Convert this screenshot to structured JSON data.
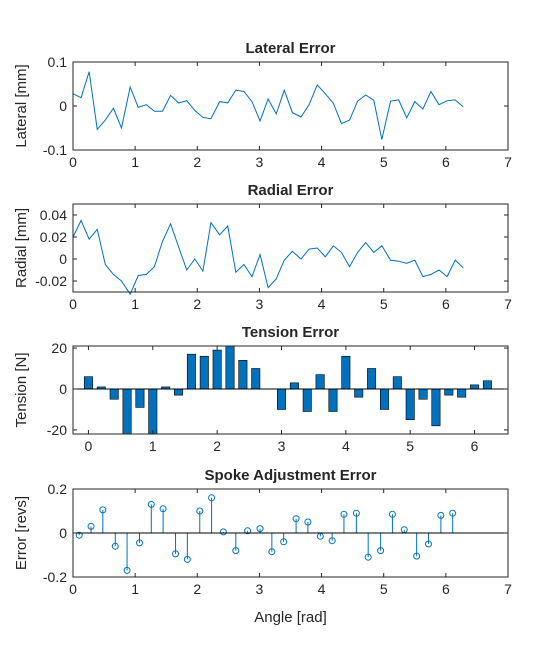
{
  "figure": {
    "background": "#ffffff",
    "line_color": "#0072bd",
    "bar_color": "#0072bd"
  },
  "chart_data": [
    {
      "type": "line",
      "title": "Lateral Error",
      "xlabel": "",
      "ylabel": "Lateral [mm]",
      "xlim": [
        0,
        7
      ],
      "ylim": [
        -0.1,
        0.1
      ],
      "xticks": [
        0,
        1,
        2,
        3,
        4,
        5,
        6,
        7
      ],
      "yticks": [
        -0.1,
        0,
        0.1
      ],
      "ytick_labels": [
        "-0.1",
        "0",
        "0.1"
      ],
      "grid": false,
      "x": [
        0.0,
        0.13,
        0.26,
        0.39,
        0.52,
        0.65,
        0.78,
        0.92,
        1.05,
        1.18,
        1.31,
        1.44,
        1.57,
        1.7,
        1.83,
        1.96,
        2.09,
        2.22,
        2.36,
        2.49,
        2.62,
        2.75,
        2.88,
        3.01,
        3.14,
        3.27,
        3.4,
        3.53,
        3.67,
        3.8,
        3.93,
        4.06,
        4.19,
        4.32,
        4.45,
        4.58,
        4.71,
        4.84,
        4.97,
        5.11,
        5.24,
        5.37,
        5.5,
        5.63,
        5.76,
        5.89,
        6.02,
        6.15,
        6.28
      ],
      "y": [
        0.028,
        0.019,
        0.078,
        -0.053,
        -0.032,
        -0.005,
        -0.05,
        0.043,
        -0.003,
        0.003,
        -0.012,
        -0.012,
        0.024,
        0.007,
        0.012,
        -0.01,
        -0.026,
        -0.029,
        0.01,
        0.007,
        0.036,
        0.033,
        0.01,
        -0.034,
        0.016,
        -0.018,
        0.036,
        -0.015,
        -0.025,
        0.003,
        0.048,
        0.028,
        0.006,
        -0.04,
        -0.032,
        0.011,
        0.025,
        0.013,
        -0.076,
        0.011,
        0.014,
        -0.027,
        0.01,
        -0.007,
        0.033,
        0.003,
        0.012,
        0.014,
        -0.002
      ]
    },
    {
      "type": "line",
      "title": "Radial Error",
      "xlabel": "",
      "ylabel": "Radial [mm]",
      "xlim": [
        0,
        7
      ],
      "ylim": [
        -0.03,
        0.05
      ],
      "xticks": [
        0,
        1,
        2,
        3,
        4,
        5,
        6,
        7
      ],
      "yticks": [
        -0.02,
        0,
        0.02,
        0.04
      ],
      "ytick_labels": [
        "-0.02",
        "0",
        "0.02",
        "0.04"
      ],
      "grid": false,
      "x": [
        0.0,
        0.13,
        0.26,
        0.39,
        0.52,
        0.65,
        0.78,
        0.92,
        1.05,
        1.18,
        1.31,
        1.44,
        1.57,
        1.7,
        1.83,
        1.96,
        2.09,
        2.22,
        2.36,
        2.49,
        2.62,
        2.75,
        2.88,
        3.01,
        3.14,
        3.27,
        3.4,
        3.53,
        3.67,
        3.8,
        3.93,
        4.06,
        4.19,
        4.32,
        4.45,
        4.58,
        4.71,
        4.84,
        4.97,
        5.11,
        5.24,
        5.37,
        5.5,
        5.63,
        5.76,
        5.89,
        6.02,
        6.15,
        6.28
      ],
      "y": [
        0.02,
        0.035,
        0.018,
        0.027,
        -0.005,
        -0.014,
        -0.02,
        -0.032,
        -0.015,
        -0.014,
        -0.007,
        0.016,
        0.032,
        0.011,
        -0.01,
        0.0,
        -0.011,
        0.033,
        0.022,
        0.03,
        -0.012,
        -0.005,
        -0.016,
        0.004,
        -0.026,
        -0.018,
        -0.001,
        0.007,
        0.0,
        0.009,
        0.01,
        0.002,
        0.012,
        0.006,
        -0.007,
        0.006,
        0.015,
        0.006,
        0.012,
        -0.001,
        -0.002,
        -0.004,
        -0.001,
        -0.016,
        -0.014,
        -0.01,
        -0.016,
        -0.001,
        -0.008
      ]
    },
    {
      "type": "bar",
      "title": "Tension Error",
      "xlabel": "",
      "ylabel": "Tension [N]",
      "xlim": [
        -0.24,
        6.52
      ],
      "ylim": [
        -22,
        21
      ],
      "xticks": [
        0,
        1,
        2,
        3,
        4,
        5,
        6
      ],
      "yticks": [
        -20,
        0,
        20
      ],
      "ytick_labels": [
        "-20",
        "0",
        "20"
      ],
      "grid": false,
      "bar_width": 0.13,
      "x": [
        0.0,
        0.2,
        0.4,
        0.6,
        0.8,
        1.0,
        1.2,
        1.4,
        1.6,
        1.8,
        2.0,
        2.2,
        2.4,
        2.6,
        2.8,
        3.0,
        3.2,
        3.4,
        3.6,
        3.8,
        4.0,
        4.2,
        4.4,
        4.6,
        4.8,
        5.0,
        5.2,
        5.4,
        5.6,
        5.8,
        6.0,
        6.2
      ],
      "values": [
        6,
        1,
        -5,
        -22,
        -9,
        -22,
        1,
        -3,
        17,
        16,
        19,
        21,
        14,
        10,
        0,
        -10,
        3,
        -11,
        7,
        -11,
        16,
        -4,
        10,
        -10,
        6,
        -15,
        -5,
        -18,
        -3,
        -4,
        2,
        4
      ]
    },
    {
      "type": "stem",
      "title": "Spoke Adjustment Error",
      "xlabel": "Angle [rad]",
      "ylabel": "Error [revs]",
      "xlim": [
        0,
        7
      ],
      "ylim": [
        -0.2,
        0.2
      ],
      "xticks": [
        0,
        1,
        2,
        3,
        4,
        5,
        6,
        7
      ],
      "yticks": [
        -0.2,
        0,
        0.2
      ],
      "ytick_labels": [
        "-0.2",
        "0",
        "0.2"
      ],
      "grid": false,
      "x": [
        0.1,
        0.29,
        0.48,
        0.68,
        0.87,
        1.07,
        1.26,
        1.45,
        1.65,
        1.84,
        2.04,
        2.23,
        2.42,
        2.62,
        2.81,
        3.01,
        3.2,
        3.39,
        3.59,
        3.78,
        3.98,
        4.17,
        4.36,
        4.56,
        4.75,
        4.95,
        5.14,
        5.33,
        5.53,
        5.72,
        5.92,
        6.11
      ],
      "values": [
        -0.01,
        0.03,
        0.105,
        -0.06,
        -0.17,
        -0.045,
        0.13,
        0.11,
        -0.095,
        -0.12,
        0.1,
        0.16,
        0.005,
        -0.08,
        0.01,
        0.02,
        -0.085,
        -0.04,
        0.065,
        0.05,
        -0.015,
        -0.035,
        0.085,
        0.09,
        -0.11,
        -0.08,
        0.085,
        0.015,
        -0.105,
        -0.05,
        0.08,
        0.09
      ]
    }
  ]
}
